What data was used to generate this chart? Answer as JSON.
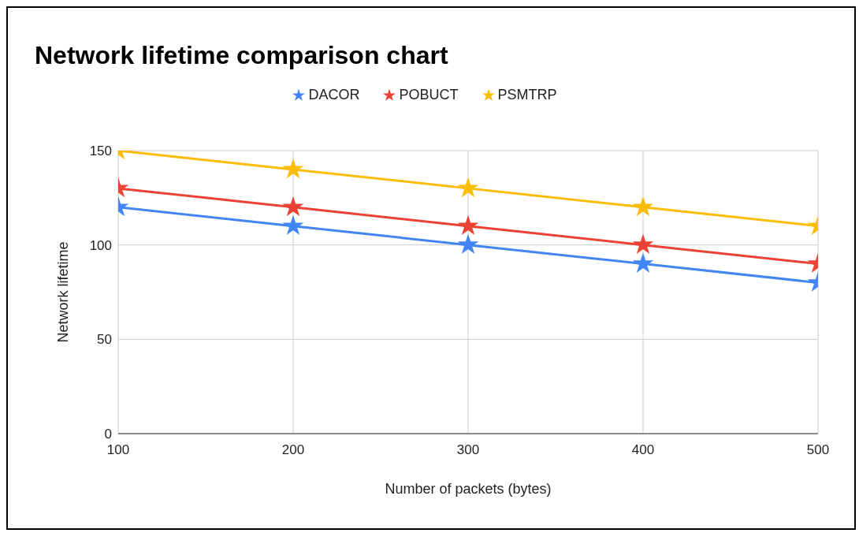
{
  "chart_data": {
    "type": "line",
    "title": "Network lifetime comparison chart",
    "xlabel": "Number of packets (bytes)",
    "ylabel": "Network lifetime",
    "x": [
      100,
      200,
      300,
      400,
      500
    ],
    "series": [
      {
        "name": "DACOR",
        "color": "#4285f4",
        "values": [
          120,
          110,
          100,
          90,
          80
        ]
      },
      {
        "name": "POBUCT",
        "color": "#ea4335",
        "values": [
          130,
          120,
          110,
          100,
          90
        ]
      },
      {
        "name": "PSMTRP",
        "color": "#fbbc04",
        "values": [
          150,
          140,
          130,
          120,
          110
        ]
      }
    ],
    "xlim": [
      100,
      500
    ],
    "xticks": [
      100,
      200,
      300,
      400,
      500
    ],
    "ylim": [
      0,
      150
    ],
    "yticks": [
      0,
      50,
      100,
      150
    ],
    "grid": true,
    "legend": "top",
    "marker": "star",
    "line_style": "solid"
  }
}
